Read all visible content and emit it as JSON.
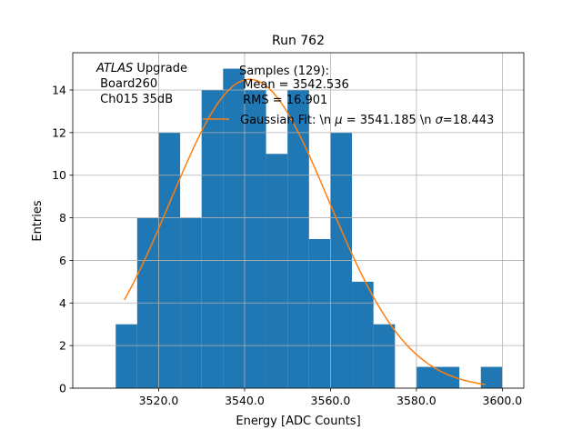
{
  "chart_data": {
    "type": "bar",
    "title": "Run 762",
    "xlabel": "Energy [ADC Counts]",
    "ylabel": "Entries",
    "xlim": [
      3500,
      3605
    ],
    "ylim": [
      0,
      15.75
    ],
    "grid": true,
    "bin_width": 5,
    "bin_starts": [
      3510,
      3515,
      3520,
      3525,
      3530,
      3535,
      3540,
      3545,
      3550,
      3555,
      3560,
      3565,
      3570,
      3575,
      3580,
      3585,
      3590,
      3595
    ],
    "values": [
      3,
      8,
      12,
      8,
      14,
      15,
      14,
      11,
      14,
      7,
      12,
      5,
      3,
      0,
      1,
      1,
      0,
      1
    ],
    "xticks": [
      3520,
      3540,
      3560,
      3580,
      3600
    ],
    "xtick_labels": [
      "3520.0",
      "3540.0",
      "3560.0",
      "3580.0",
      "3600.0"
    ],
    "yticks": [
      0,
      2,
      4,
      6,
      8,
      10,
      12,
      14
    ],
    "ytick_labels": [
      "0",
      "2",
      "4",
      "6",
      "8",
      "10",
      "12",
      "14"
    ],
    "colors": {
      "bars": "#1f77b4",
      "fit": "#ff7f0e",
      "grid": "#b0b0b0"
    },
    "fit": {
      "type": "gaussian",
      "amplitude": 14.5,
      "mu": 3541.185,
      "sigma": 18.443,
      "x_range": [
        3512,
        3596
      ]
    },
    "annotation": {
      "line1_italic": "ATLAS",
      "line1_rest": " Upgrade",
      "line2": " Board260",
      "line3": " Ch015 35dB"
    },
    "legend": {
      "placement": "top-center",
      "samples_lines": [
        "Samples (129):",
        " Mean = 3542.536",
        " RMS = 16.901"
      ],
      "fit_label_a": "Gaussian Fit: \\n ",
      "fit_mu_sym": "μ",
      "fit_label_b": " = 3541.185 \\n ",
      "fit_sigma_sym": "σ",
      "fit_label_c": "=18.443"
    }
  }
}
